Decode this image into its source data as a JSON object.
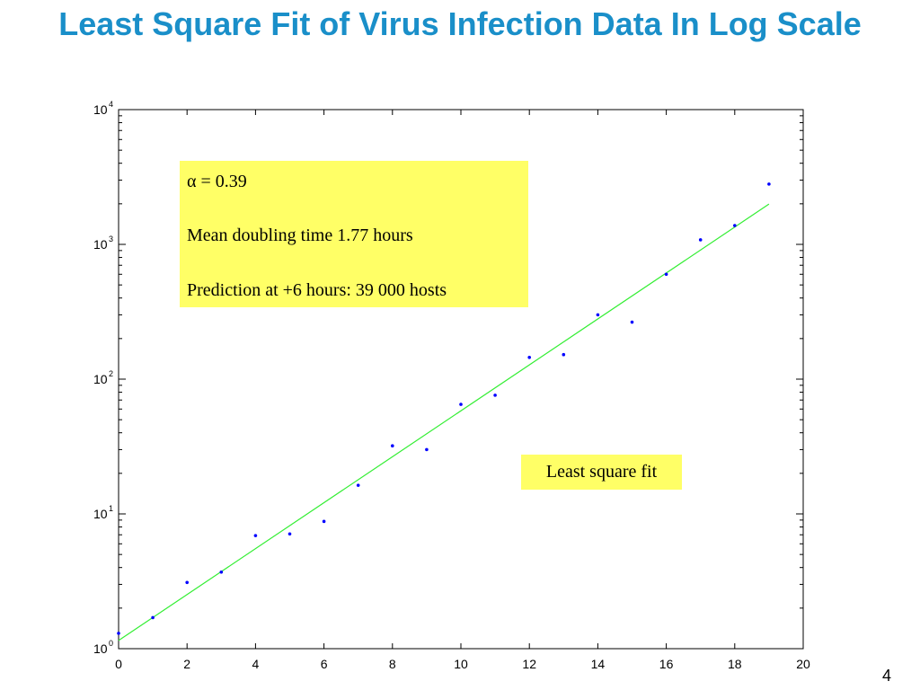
{
  "slide": {
    "title": "Least Square Fit of Virus Infection Data In Log Scale",
    "page_number": "4"
  },
  "colors": {
    "title": "#1a8fc9",
    "points": "#0000ff",
    "fit_line": "#33ee33",
    "note_background": "#ffff66"
  },
  "annotations": {
    "alpha": "α = 0.39",
    "doubling_time": "Mean doubling time 1.77 hours",
    "prediction": "Prediction at +6 hours: 39 000 hosts",
    "fit_label": "Least square fit"
  },
  "chart_data": {
    "type": "scatter",
    "title": "Least Square Fit of Virus Infection Data In Log Scale",
    "xlabel": "",
    "ylabel": "",
    "xlim": [
      0,
      20
    ],
    "ylim": [
      1,
      10000
    ],
    "yscale": "log",
    "grid": false,
    "x_ticks": [
      0,
      2,
      4,
      6,
      8,
      10,
      12,
      14,
      16,
      18,
      20
    ],
    "y_ticks": [
      {
        "value": 1,
        "base": "10",
        "exp": "0"
      },
      {
        "value": 10,
        "base": "10",
        "exp": "1"
      },
      {
        "value": 100,
        "base": "10",
        "exp": "2"
      },
      {
        "value": 1000,
        "base": "10",
        "exp": "3"
      },
      {
        "value": 10000,
        "base": "10",
        "exp": "4"
      }
    ],
    "series": [
      {
        "kind": "points",
        "x": [
          0,
          1,
          2,
          3,
          4,
          5,
          6,
          7,
          8,
          9,
          10,
          11,
          12,
          13,
          14,
          15,
          16,
          17,
          18,
          19
        ],
        "y": [
          1.3,
          1.7,
          3.1,
          3.7,
          6.9,
          7.1,
          8.8,
          16.3,
          32,
          30,
          65,
          76,
          145,
          152,
          300,
          265,
          600,
          1080,
          1380,
          2800
        ]
      },
      {
        "kind": "line",
        "x": [
          0,
          19
        ],
        "y": [
          1.15,
          1990
        ]
      }
    ]
  }
}
